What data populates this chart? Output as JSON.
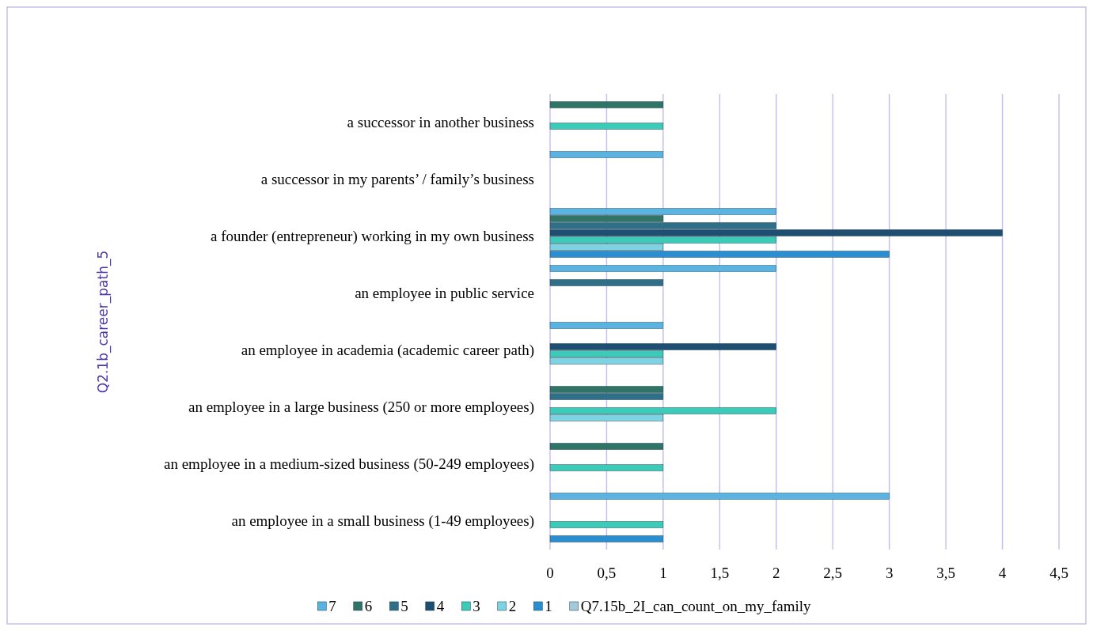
{
  "chart_data": {
    "type": "bar",
    "orientation": "horizontal",
    "ylabel": "Q2.1b_career_path_5",
    "categories": [
      "a successor in another business",
      "a successor in my parents’ / family’s business",
      "a founder (entrepreneur) working in my own business",
      "an employee in public service",
      "an employee in academia (academic career path)",
      "an employee in a large business (250 or more employees)",
      "an employee in a medium-sized business (50-249 employees)",
      "an employee in a small business (1-49 employees)"
    ],
    "series": [
      {
        "name": "7",
        "color": "#5ab4e2",
        "values": [
          null,
          1,
          2,
          2,
          1,
          null,
          null,
          3
        ]
      },
      {
        "name": "6",
        "color": "#2f7466",
        "values": [
          1,
          null,
          1,
          null,
          null,
          1,
          1,
          null
        ]
      },
      {
        "name": "5",
        "color": "#2f6f88",
        "values": [
          null,
          null,
          2,
          1,
          null,
          1,
          null,
          null
        ]
      },
      {
        "name": "4",
        "color": "#1f4e73",
        "values": [
          null,
          null,
          4,
          null,
          2,
          null,
          null,
          null
        ]
      },
      {
        "name": "3",
        "color": "#3ccbb8",
        "values": [
          1,
          null,
          2,
          null,
          1,
          2,
          1,
          1
        ]
      },
      {
        "name": "2",
        "color": "#7fd2e2",
        "values": [
          null,
          null,
          1,
          null,
          1,
          1,
          null,
          null
        ]
      },
      {
        "name": "1",
        "color": "#2a8ed0",
        "values": [
          null,
          null,
          3,
          null,
          null,
          null,
          null,
          1
        ]
      },
      {
        "name": "Q7.15b_2I_can_count_on_my_family",
        "color": "#a3cad8",
        "values": [
          null,
          null,
          null,
          null,
          null,
          null,
          null,
          null
        ]
      }
    ],
    "xlim": [
      0,
      4.5
    ],
    "xticks": [
      0,
      {
        "value": 0.5,
        "label": "0,5"
      },
      1,
      {
        "value": 1.5,
        "label": "1,5"
      },
      2,
      {
        "value": 2.5,
        "label": "2,5"
      },
      3,
      {
        "value": 3.5,
        "label": "3,5"
      },
      4,
      {
        "value": 4.5,
        "label": "4,5"
      }
    ],
    "grid": "x",
    "legend": "bottom"
  }
}
